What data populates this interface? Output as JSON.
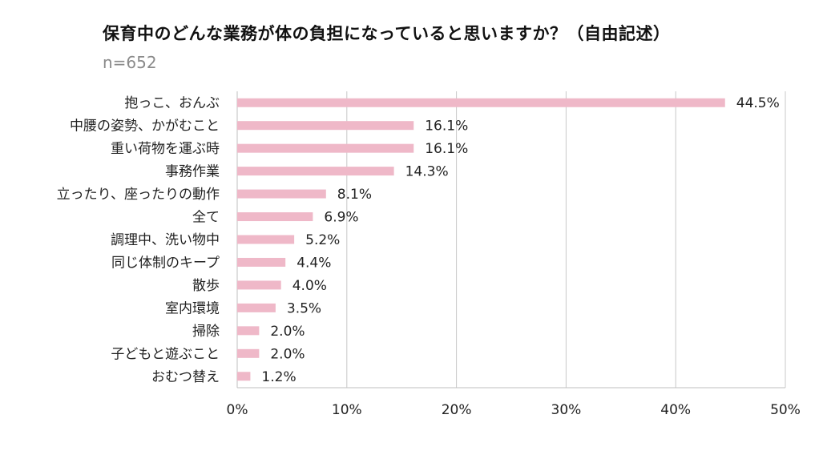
{
  "chart_data": {
    "type": "bar",
    "orientation": "horizontal",
    "title": "保育中のどんな業務が体の負担になっていると思いますか？（自由記述）",
    "subtitle": "n=652",
    "categories": [
      "抱っこ、おんぶ",
      "中腰の姿勢、かがむこと",
      "重い荷物を運ぶ時",
      "事務作業",
      "立ったり、座ったりの動作",
      "全て",
      "調理中、洗い物中",
      "同じ体制のキープ",
      "散歩",
      "室内環境",
      "掃除",
      "子どもと遊ぶこと",
      "おむつ替え"
    ],
    "values": [
      44.5,
      16.1,
      16.1,
      14.3,
      8.1,
      6.9,
      5.2,
      4.4,
      4.0,
      3.5,
      2.0,
      2.0,
      1.2
    ],
    "value_labels": [
      "44.5%",
      "16.1%",
      "16.1%",
      "14.3%",
      "8.1%",
      "6.9%",
      "5.2%",
      "4.4%",
      "4.0%",
      "3.5%",
      "2.0%",
      "2.0%",
      "1.2%"
    ],
    "xlim": [
      0,
      50
    ],
    "xticks": [
      0,
      10,
      20,
      30,
      40,
      50
    ],
    "xtick_labels": [
      "0%",
      "10%",
      "20%",
      "30%",
      "40%",
      "50%"
    ],
    "xlabel": "",
    "ylabel": "",
    "grid": true,
    "bar_color": "#efb8c8"
  }
}
